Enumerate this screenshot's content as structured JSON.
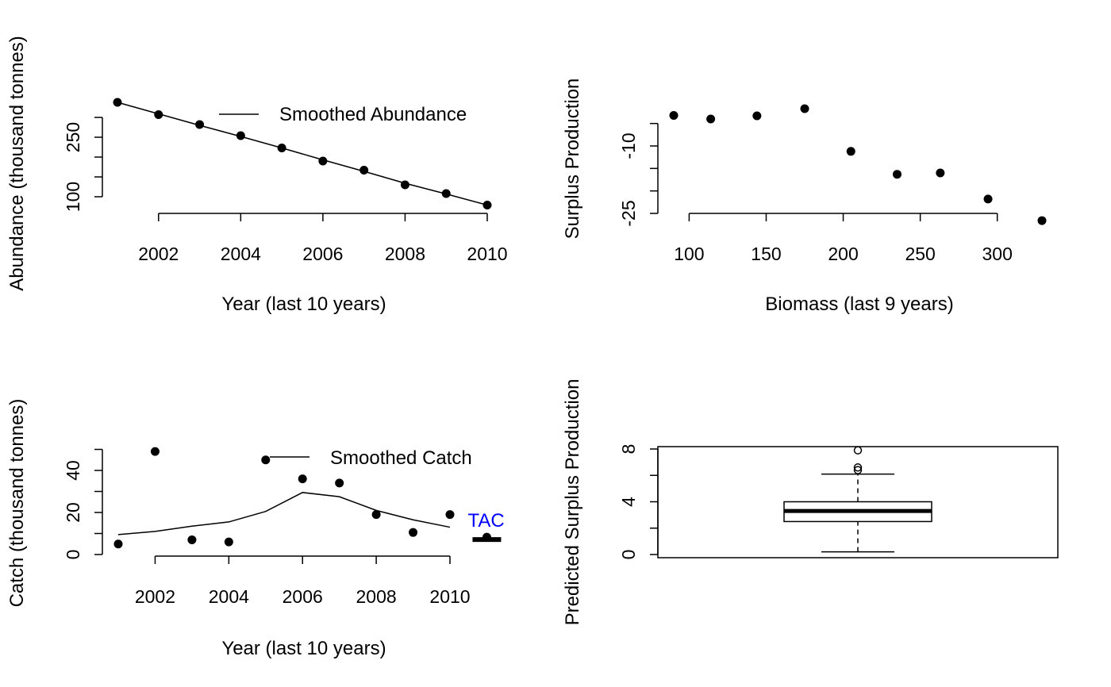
{
  "chart_data": [
    {
      "id": "abundance",
      "type": "line",
      "xlabel": "Year (last 10 years)",
      "ylabel": "Abundance (thousand tonnes)",
      "x_ticks": [
        2002,
        2004,
        2006,
        2008,
        2010
      ],
      "y_ticks": [
        100,
        150,
        200,
        250,
        300
      ],
      "y_tick_labels": [
        "100",
        "",
        "",
        "250",
        ""
      ],
      "xlim": [
        2001,
        2010
      ],
      "ylim": [
        65,
        345
      ],
      "legend": {
        "label": "Smoothed Abundance",
        "position": "top-right"
      },
      "points": {
        "x": [
          2001,
          2002,
          2003,
          2004,
          2005,
          2006,
          2007,
          2008,
          2009,
          2010
        ],
        "y": [
          338,
          307,
          282,
          254,
          223,
          190,
          167,
          130,
          108,
          79
        ]
      },
      "smoothed": {
        "name": "Smoothed Abundance",
        "x": [
          2001,
          2002,
          2003,
          2004,
          2005,
          2006,
          2007,
          2008,
          2009,
          2010
        ],
        "y": [
          338,
          309,
          280,
          252,
          223,
          193,
          164,
          134,
          107,
          79
        ]
      },
      "grid": false
    },
    {
      "id": "surplus",
      "type": "scatter",
      "xlabel": "Biomass (last 9 years)",
      "ylabel": "Surplus Production",
      "x_ticks": [
        100,
        150,
        200,
        250,
        300
      ],
      "y_ticks": [
        -25,
        -20,
        -15,
        -10,
        -5
      ],
      "y_tick_labels": [
        "-25",
        "",
        "",
        "-10",
        ""
      ],
      "xlim": [
        90,
        330
      ],
      "ylim": [
        -28.3,
        -1.7
      ],
      "points": {
        "x": [
          90,
          114,
          144,
          175,
          205,
          235,
          263,
          294,
          329
        ],
        "y": [
          -3.2,
          -4.0,
          -3.3,
          -1.7,
          -11.2,
          -16.3,
          -16.0,
          -21.8,
          -26.6
        ]
      },
      "grid": false
    },
    {
      "id": "catch",
      "type": "line",
      "xlabel": "Year (last 10 years)",
      "ylabel": "Catch (thousand tonnes)",
      "x_ticks": [
        2002,
        2004,
        2006,
        2008,
        2010
      ],
      "y_ticks": [
        0,
        10,
        20,
        30,
        40,
        50
      ],
      "y_tick_labels": [
        "0",
        "",
        "20",
        "",
        "40",
        ""
      ],
      "xlim": [
        2001,
        2011.5
      ],
      "ylim": [
        -2,
        52
      ],
      "legend": {
        "label": "Smoothed Catch",
        "position": "top-right"
      },
      "points": {
        "x": [
          2001,
          2002,
          2003,
          2004,
          2005,
          2006,
          2007,
          2008,
          2009,
          2010
        ],
        "y": [
          5,
          49,
          7,
          6,
          45,
          36,
          34,
          19,
          10.5,
          19
        ]
      },
      "smoothed": {
        "name": "Smoothed Catch",
        "x": [
          2001,
          2002,
          2003,
          2004,
          2005,
          2006,
          2007,
          2008,
          2009,
          2010
        ],
        "y": [
          9.5,
          11,
          13.5,
          15.5,
          20.5,
          29.5,
          27.5,
          21,
          16.5,
          13
        ]
      },
      "tac": {
        "label": "TAC",
        "x": 2011,
        "y": 7.5,
        "color": "#0000ff"
      },
      "grid": false
    },
    {
      "id": "predicted",
      "type": "box",
      "xlabel": "",
      "ylabel": "Predicted Surplus Production",
      "y_ticks": [
        0,
        2,
        4,
        6,
        8
      ],
      "y_tick_labels": [
        "0",
        "",
        "4",
        "",
        "8"
      ],
      "ylim": [
        0,
        8.2
      ],
      "box": {
        "min": 0.2,
        "q1": 2.5,
        "median": 3.3,
        "q3": 4.0,
        "max": 6.1
      },
      "outliers": [
        6.4,
        6.6,
        7.9
      ],
      "grid": false
    }
  ]
}
